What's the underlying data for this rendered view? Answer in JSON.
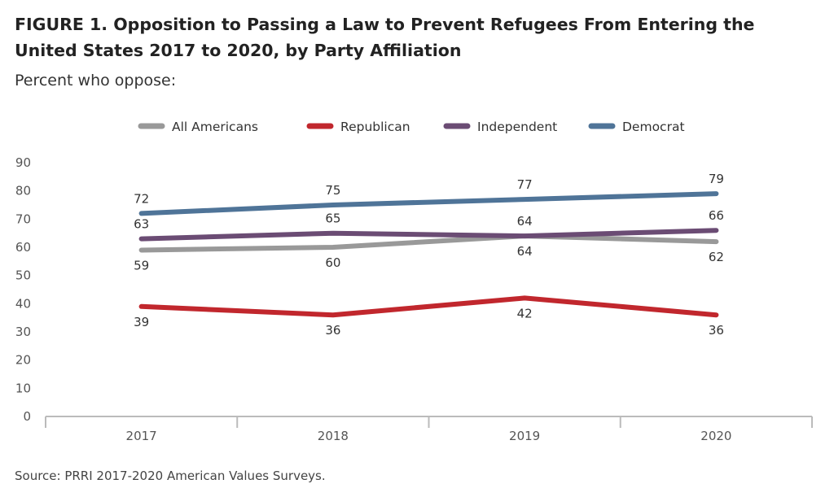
{
  "figure": {
    "title": "FIGURE 1.  Opposition to Passing a Law to Prevent Refugees From Entering the United States 2017 to 2020, by Party Affiliation",
    "subtitle": "Percent who oppose:",
    "source": "Source: PRRI 2017-2020 American Values Surveys."
  },
  "chart_data": {
    "type": "line",
    "x": [
      "2017",
      "2018",
      "2019",
      "2020"
    ],
    "ylim": [
      0,
      90
    ],
    "yticks": [
      "0",
      "10",
      "20",
      "30",
      "40",
      "50",
      "60",
      "70",
      "80",
      "90"
    ],
    "grid": false,
    "legend_position": "top",
    "series": [
      {
        "name": "All Americans",
        "color": "#999999",
        "values": [
          59,
          60,
          64,
          62
        ],
        "label_side": "below"
      },
      {
        "name": "Republican",
        "color": "#c1272d",
        "values": [
          39,
          36,
          42,
          36
        ],
        "label_side": "below"
      },
      {
        "name": "Independent",
        "color": "#6b4c74",
        "values": [
          63,
          65,
          64,
          66
        ],
        "label_side": "above"
      },
      {
        "name": "Democrat",
        "color": "#4f7498",
        "values": [
          72,
          75,
          77,
          79
        ],
        "label_side": "above"
      }
    ]
  }
}
